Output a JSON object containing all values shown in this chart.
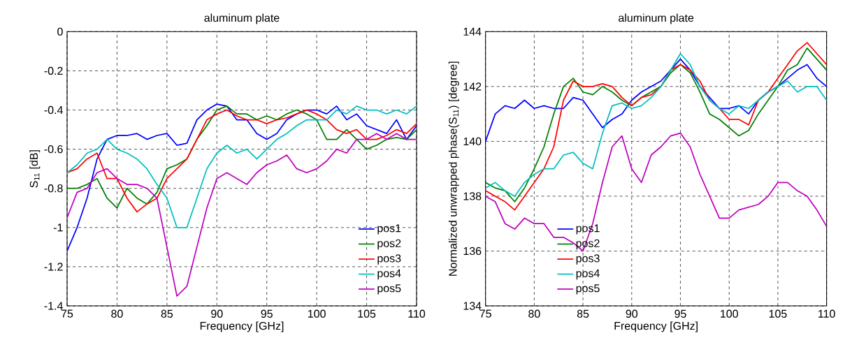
{
  "chart_data": [
    {
      "type": "line",
      "title": "aluminum plate",
      "xlabel": "Frequency [GHz]",
      "ylabel": "S$_{11}$ [dB]",
      "x": [
        75,
        76,
        77,
        78,
        79,
        80,
        81,
        82,
        83,
        84,
        85,
        86,
        87,
        88,
        89,
        90,
        91,
        92,
        93,
        94,
        95,
        96,
        97,
        98,
        99,
        100,
        101,
        102,
        103,
        104,
        105,
        106,
        107,
        108,
        109,
        110
      ],
      "series": [
        {
          "name": "pos1",
          "color": "#0000ff",
          "values": [
            -1.12,
            -1.0,
            -0.85,
            -0.65,
            -0.55,
            -0.53,
            -0.53,
            -0.52,
            -0.55,
            -0.53,
            -0.52,
            -0.58,
            -0.57,
            -0.45,
            -0.4,
            -0.37,
            -0.38,
            -0.45,
            -0.45,
            -0.52,
            -0.55,
            -0.52,
            -0.45,
            -0.42,
            -0.4,
            -0.4,
            -0.42,
            -0.38,
            -0.45,
            -0.42,
            -0.48,
            -0.5,
            -0.52,
            -0.45,
            -0.55,
            -0.48
          ]
        },
        {
          "name": "pos2",
          "color": "#008000",
          "values": [
            -0.8,
            -0.8,
            -0.78,
            -0.75,
            -0.85,
            -0.9,
            -0.8,
            -0.85,
            -0.88,
            -0.82,
            -0.7,
            -0.68,
            -0.65,
            -0.55,
            -0.48,
            -0.4,
            -0.38,
            -0.42,
            -0.42,
            -0.45,
            -0.43,
            -0.45,
            -0.42,
            -0.4,
            -0.42,
            -0.45,
            -0.55,
            -0.55,
            -0.5,
            -0.55,
            -0.6,
            -0.58,
            -0.55,
            -0.54,
            -0.55,
            -0.5
          ]
        },
        {
          "name": "pos3",
          "color": "#ff0000",
          "values": [
            -0.72,
            -0.7,
            -0.65,
            -0.62,
            -0.75,
            -0.75,
            -0.85,
            -0.92,
            -0.88,
            -0.85,
            -0.75,
            -0.7,
            -0.65,
            -0.55,
            -0.45,
            -0.42,
            -0.4,
            -0.43,
            -0.45,
            -0.45,
            -0.47,
            -0.45,
            -0.44,
            -0.42,
            -0.4,
            -0.42,
            -0.45,
            -0.5,
            -0.52,
            -0.5,
            -0.55,
            -0.55,
            -0.53,
            -0.5,
            -0.52,
            -0.47
          ]
        },
        {
          "name": "pos4",
          "color": "#00bfbf",
          "values": [
            -0.72,
            -0.68,
            -0.62,
            -0.6,
            -0.55,
            -0.6,
            -0.62,
            -0.65,
            -0.7,
            -0.78,
            -0.85,
            -1.0,
            -1.0,
            -0.85,
            -0.7,
            -0.62,
            -0.58,
            -0.62,
            -0.6,
            -0.65,
            -0.6,
            -0.55,
            -0.52,
            -0.48,
            -0.45,
            -0.45,
            -0.45,
            -0.4,
            -0.42,
            -0.38,
            -0.4,
            -0.4,
            -0.42,
            -0.4,
            -0.42,
            -0.38
          ]
        },
        {
          "name": "pos5",
          "color": "#bf00bf",
          "values": [
            -0.95,
            -0.82,
            -0.8,
            -0.72,
            -0.7,
            -0.75,
            -0.78,
            -0.78,
            -0.8,
            -0.85,
            -1.1,
            -1.35,
            -1.3,
            -1.1,
            -0.9,
            -0.75,
            -0.72,
            -0.75,
            -0.78,
            -0.72,
            -0.68,
            -0.66,
            -0.63,
            -0.7,
            -0.72,
            -0.7,
            -0.66,
            -0.6,
            -0.62,
            -0.55,
            -0.55,
            -0.52,
            -0.55,
            -0.52,
            -0.55,
            -0.55
          ]
        }
      ],
      "xlim": [
        75,
        110
      ],
      "ylim": [
        -1.4,
        0
      ],
      "xticks": [
        75,
        80,
        85,
        90,
        95,
        100,
        105,
        110
      ],
      "yticks": [
        -1.4,
        -1.2,
        -1,
        -0.8,
        -0.6,
        -0.4,
        -0.2,
        0
      ],
      "grid": true,
      "legend": "bottom right"
    },
    {
      "type": "line",
      "title": "aluminum plate",
      "xlabel": "Frequency [GHz]",
      "ylabel": "Normalized unwrapped phase(S$_{11}$) [degree]",
      "x": [
        75,
        76,
        77,
        78,
        79,
        80,
        81,
        82,
        83,
        84,
        85,
        86,
        87,
        88,
        89,
        90,
        91,
        92,
        93,
        94,
        95,
        96,
        97,
        98,
        99,
        100,
        101,
        102,
        103,
        104,
        105,
        106,
        107,
        108,
        109,
        110
      ],
      "series": [
        {
          "name": "pos1",
          "color": "#0000ff",
          "values": [
            140.0,
            141.0,
            141.3,
            141.2,
            141.5,
            141.2,
            141.3,
            141.2,
            141.2,
            141.6,
            141.5,
            141.0,
            140.5,
            140.8,
            141.0,
            141.5,
            141.8,
            142.0,
            142.2,
            142.6,
            143.0,
            142.6,
            142.0,
            141.6,
            141.2,
            141.2,
            141.3,
            141.0,
            141.5,
            141.8,
            142.0,
            142.3,
            142.6,
            142.8,
            142.3,
            142.0
          ]
        },
        {
          "name": "pos2",
          "color": "#008000",
          "values": [
            138.5,
            138.3,
            138.2,
            137.8,
            138.3,
            139.0,
            139.8,
            141.0,
            142.0,
            142.3,
            141.8,
            141.7,
            142.0,
            141.8,
            141.5,
            141.3,
            141.6,
            141.8,
            142.0,
            142.5,
            142.8,
            142.5,
            141.8,
            141.0,
            140.8,
            140.5,
            140.2,
            140.4,
            141.0,
            141.5,
            142.0,
            142.6,
            142.8,
            143.4,
            143.0,
            142.6
          ]
        },
        {
          "name": "pos3",
          "color": "#ff0000",
          "values": [
            138.2,
            138.0,
            137.8,
            137.5,
            138.0,
            138.5,
            139.0,
            139.8,
            141.5,
            142.2,
            142.0,
            142.0,
            142.1,
            142.0,
            141.6,
            141.3,
            141.6,
            141.7,
            142.0,
            142.6,
            142.8,
            142.6,
            142.2,
            141.5,
            141.2,
            140.8,
            140.8,
            140.6,
            141.5,
            141.8,
            142.3,
            142.8,
            143.3,
            143.6,
            143.2,
            142.8
          ]
        },
        {
          "name": "pos4",
          "color": "#00bfbf",
          "values": [
            138.3,
            138.5,
            138.2,
            138.0,
            138.5,
            138.8,
            139.0,
            139.0,
            139.5,
            139.6,
            139.2,
            139.0,
            140.3,
            141.3,
            141.4,
            141.2,
            141.3,
            141.6,
            142.0,
            142.6,
            143.2,
            142.8,
            142.0,
            141.5,
            141.2,
            141.0,
            141.3,
            141.2,
            141.5,
            141.8,
            142.0,
            142.2,
            141.8,
            142.0,
            142.0,
            141.5
          ]
        },
        {
          "name": "pos5",
          "color": "#bf00bf",
          "values": [
            138.0,
            137.8,
            137.0,
            136.8,
            137.2,
            137.0,
            137.0,
            136.5,
            136.5,
            136.3,
            136.0,
            137.0,
            138.5,
            139.8,
            140.2,
            139.0,
            138.5,
            139.5,
            139.8,
            140.2,
            140.3,
            139.8,
            138.8,
            138.0,
            137.2,
            137.2,
            137.5,
            137.6,
            137.7,
            138.0,
            138.5,
            138.5,
            138.2,
            138.0,
            137.5,
            136.9
          ]
        }
      ],
      "xlim": [
        75,
        110
      ],
      "ylim": [
        134,
        144
      ],
      "xticks": [
        75,
        80,
        85,
        90,
        95,
        100,
        105,
        110
      ],
      "yticks": [
        134,
        136,
        138,
        140,
        142,
        144
      ],
      "grid": true,
      "legend": "bottom left"
    }
  ]
}
